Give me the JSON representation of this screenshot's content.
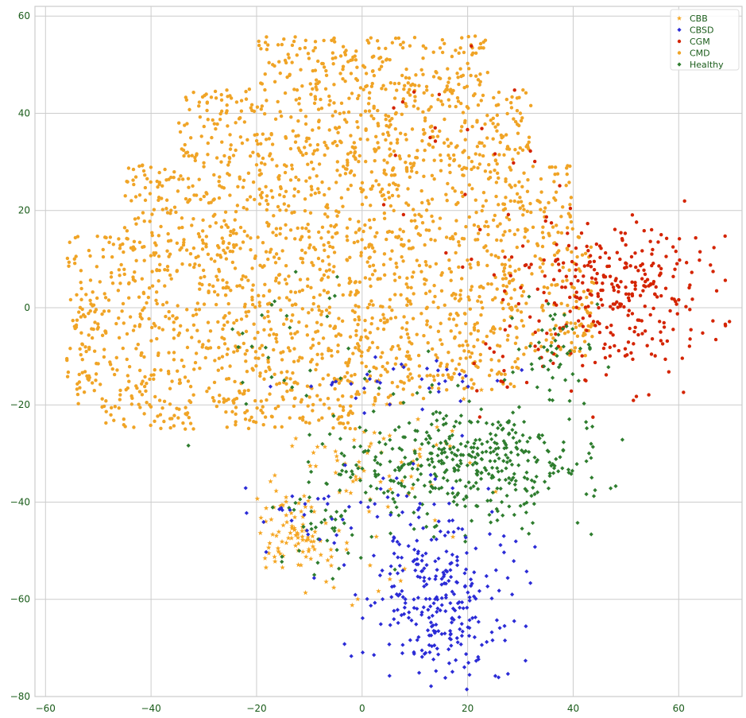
{
  "chart_data": {
    "type": "scatter",
    "title": "",
    "xlabel": "",
    "ylabel": "",
    "xlim": [
      -62,
      72
    ],
    "ylim": [
      -80,
      62
    ],
    "xticks": [
      -60,
      -40,
      -20,
      0,
      20,
      40,
      60
    ],
    "yticks": [
      -80,
      -60,
      -40,
      -20,
      0,
      20,
      40,
      60
    ],
    "xtick_labels": [
      "−60",
      "−40",
      "−20",
      "0",
      "20",
      "40",
      "60"
    ],
    "ytick_labels": [
      "−80",
      "−60",
      "−40",
      "−20",
      "0",
      "20",
      "40",
      "60"
    ],
    "grid": true,
    "legend_position": "top-right",
    "tick_label_color": "#1a5c1a",
    "grid_color": "#cccccc",
    "series": [
      {
        "name": "CBB",
        "color": "#f5a623",
        "marker": "star",
        "clusters": [
          {
            "cx": -13,
            "cy": -45,
            "sx": 4,
            "sy": 5,
            "n": 90
          },
          {
            "cx": 5,
            "cy": -32,
            "sx": 10,
            "sy": 8,
            "n": 70
          },
          {
            "cx": -2,
            "cy": -58,
            "sx": 5,
            "sy": 3,
            "n": 8
          }
        ]
      },
      {
        "name": "CBSD",
        "color": "#2b2bd6",
        "marker": "diamond",
        "clusters": [
          {
            "cx": 15,
            "cy": -60,
            "sx": 7,
            "sy": 8,
            "n": 260
          },
          {
            "cx": 5,
            "cy": -42,
            "sx": 9,
            "sy": 6,
            "n": 50
          },
          {
            "cx": 7,
            "cy": -16,
            "sx": 9,
            "sy": 3,
            "n": 35
          },
          {
            "cx": -12,
            "cy": -42,
            "sx": 3,
            "sy": 4,
            "n": 15
          }
        ]
      },
      {
        "name": "CGM",
        "color": "#d42400",
        "marker": "circle",
        "clusters": [
          {
            "cx": 50,
            "cy": 3,
            "sx": 8,
            "sy": 8,
            "n": 280
          },
          {
            "cx": 33,
            "cy": 10,
            "sx": 8,
            "sy": 10,
            "n": 40
          },
          {
            "cx": 14,
            "cy": 30,
            "sx": 12,
            "sy": 12,
            "n": 15
          },
          {
            "cx": 24,
            "cy": -13,
            "sx": 6,
            "sy": 5,
            "n": 15
          }
        ]
      },
      {
        "name": "CMD",
        "color": "#f0a426",
        "marker": "circle",
        "clusters": [
          {
            "cx": -5,
            "cy": 12,
            "sx": 20,
            "sy": 20,
            "n": 2500
          }
        ]
      },
      {
        "name": "Healthy",
        "color": "#2e7d2e",
        "marker": "diamond",
        "clusters": [
          {
            "cx": 20,
            "cy": -32,
            "sx": 12,
            "sy": 6,
            "n": 420
          },
          {
            "cx": 36,
            "cy": -10,
            "sx": 4,
            "sy": 5,
            "n": 50
          },
          {
            "cx": -8,
            "cy": -45,
            "sx": 5,
            "sy": 7,
            "n": 45
          },
          {
            "cx": -15,
            "cy": -12,
            "sx": 12,
            "sy": 8,
            "n": 30
          }
        ]
      }
    ],
    "point_sampling_seed": 7
  }
}
